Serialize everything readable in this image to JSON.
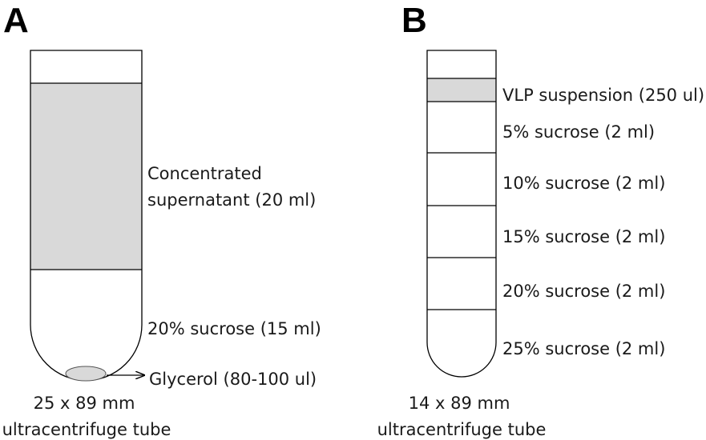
{
  "panel_a": {
    "letter": "A",
    "layers": {
      "supernatant_line1": "Concentrated",
      "supernatant_line2": "supernatant (20 ml)",
      "sucrose": "20% sucrose (15 ml)",
      "glycerol": "Glycerol (80-100 ul)"
    },
    "caption_line1": "25 x 89 mm",
    "caption_line2": "ultracentrifuge tube"
  },
  "panel_b": {
    "letter": "B",
    "layers": [
      "VLP suspension (250 ul)",
      "5% sucrose (2 ml)",
      "10% sucrose (2 ml)",
      "15% sucrose (2 ml)",
      "20% sucrose (2 ml)",
      "25% sucrose (2 ml)"
    ],
    "caption_line1": "14 x 89 mm",
    "caption_line2": "ultracentrifuge tube"
  },
  "colors": {
    "fill_gray": "#d9d9d9",
    "outline": "#000000"
  }
}
